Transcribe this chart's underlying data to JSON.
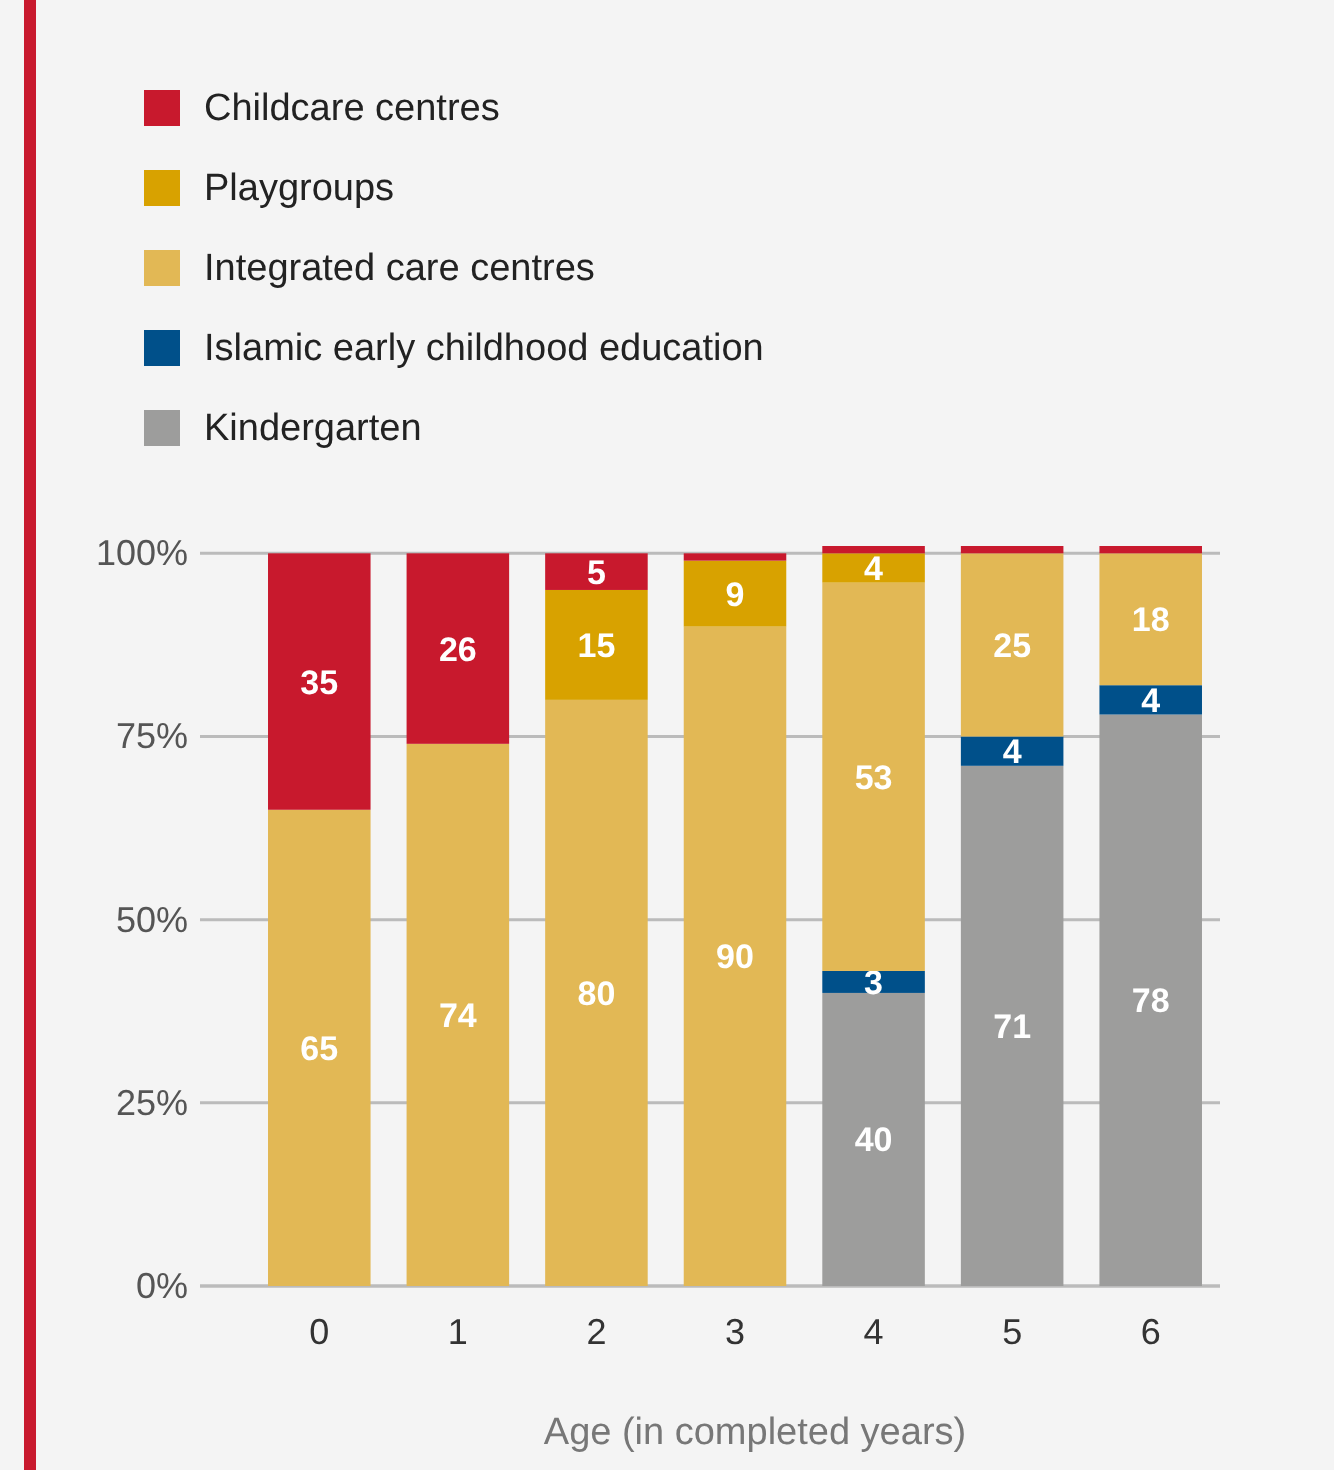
{
  "chart_data": {
    "type": "bar",
    "stacked": true,
    "xlabel": "Age (in completed years)",
    "categories": [
      "0",
      "1",
      "2",
      "3",
      "4",
      "5",
      "6"
    ],
    "series": [
      {
        "name": "Kindergarten",
        "color": "#9d9d9c",
        "values": [
          0,
          0,
          0,
          0,
          40,
          71,
          78
        ],
        "value_labels": [
          null,
          null,
          null,
          null,
          "40",
          "71",
          "78"
        ]
      },
      {
        "name": "Islamic early childhood education",
        "color": "#00508a",
        "values": [
          0,
          0,
          0,
          0,
          3,
          4,
          4
        ],
        "value_labels": [
          null,
          null,
          null,
          null,
          "3",
          "4",
          "4"
        ]
      },
      {
        "name": "Integrated care centres",
        "color": "#e2b855",
        "values": [
          65,
          74,
          80,
          90,
          53,
          25,
          18
        ],
        "value_labels": [
          "65",
          "74",
          "80",
          "90",
          "53",
          "25",
          "18"
        ]
      },
      {
        "name": "Playgroups",
        "color": "#d8a200",
        "values": [
          0,
          0,
          15,
          9,
          4,
          0,
          0
        ],
        "value_labels": [
          null,
          null,
          "15",
          "9",
          "4",
          null,
          null
        ]
      },
      {
        "name": "Childcare centres",
        "color": "#c8192d",
        "values": [
          35,
          26,
          5,
          1,
          1,
          1,
          1
        ],
        "value_labels": [
          "35",
          "26",
          "5",
          null,
          null,
          null,
          null
        ]
      }
    ],
    "ylim": [
      0,
      101
    ],
    "yticks": [
      {
        "value": 0,
        "label": "0%"
      },
      {
        "value": 25,
        "label": "25%"
      },
      {
        "value": 50,
        "label": "50%"
      },
      {
        "value": 75,
        "label": "75%"
      },
      {
        "value": 100,
        "label": "100%"
      }
    ],
    "grid": "y",
    "legend": "top left"
  }
}
